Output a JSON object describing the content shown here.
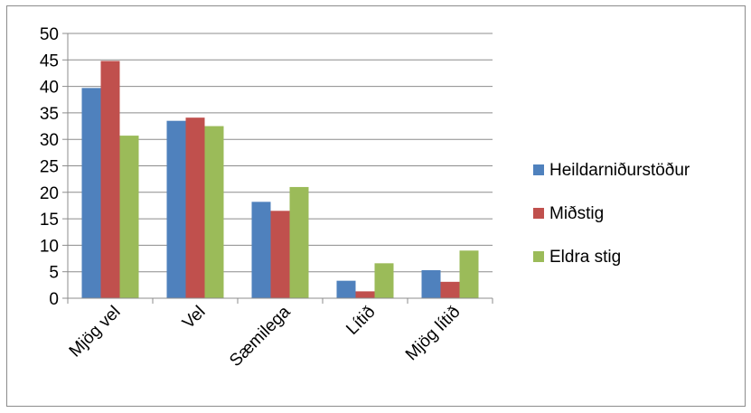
{
  "chart_data": {
    "type": "bar",
    "categories": [
      "Mjög vel",
      "Vel",
      "Sæmilega",
      "Lítið",
      "Mjög lítið"
    ],
    "series": [
      {
        "name": "Heildarniðurstöður",
        "color": "#4f81bd",
        "values": [
          39.7,
          33.5,
          18.2,
          3.3,
          5.3
        ]
      },
      {
        "name": "Miðstig",
        "color": "#c0504d",
        "values": [
          44.8,
          34.1,
          16.5,
          1.3,
          3.1
        ]
      },
      {
        "name": "Eldra stig",
        "color": "#9bbb59",
        "values": [
          30.7,
          32.5,
          21.0,
          6.6,
          9.0
        ]
      }
    ],
    "title": "",
    "xlabel": "",
    "ylabel": "",
    "ylim": [
      0,
      50
    ],
    "yticks": [
      0,
      5,
      10,
      15,
      20,
      25,
      30,
      35,
      40,
      45,
      50
    ],
    "grid": true,
    "legend_position": "right"
  }
}
